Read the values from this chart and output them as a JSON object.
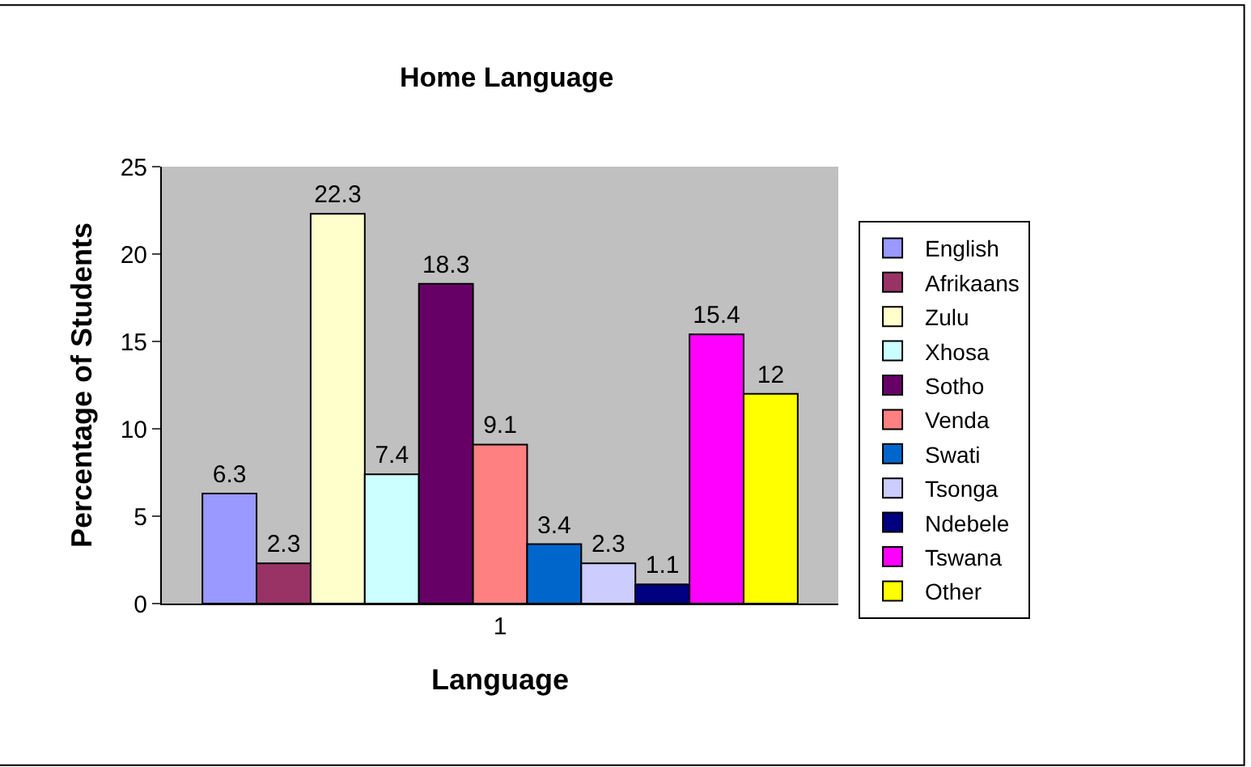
{
  "chart_data": {
    "type": "bar",
    "title": "Home Language",
    "xlabel": "Language",
    "ylabel": "Percentage of Students",
    "categories": [
      "1"
    ],
    "series": [
      {
        "name": "English",
        "color": "#9999ff",
        "values": [
          6.3
        ]
      },
      {
        "name": "Afrikaans",
        "color": "#993366",
        "values": [
          2.3
        ]
      },
      {
        "name": "Zulu",
        "color": "#ffffcc",
        "values": [
          22.3
        ]
      },
      {
        "name": "Xhosa",
        "color": "#ccffff",
        "values": [
          7.4
        ]
      },
      {
        "name": "Sotho",
        "color": "#660066",
        "values": [
          18.3
        ]
      },
      {
        "name": "Venda",
        "color": "#ff8080",
        "values": [
          9.1
        ]
      },
      {
        "name": "Swati",
        "color": "#0066cc",
        "values": [
          3.4
        ]
      },
      {
        "name": "Tsonga",
        "color": "#ccccff",
        "values": [
          2.3
        ]
      },
      {
        "name": "Ndebele",
        "color": "#000080",
        "values": [
          1.1
        ]
      },
      {
        "name": "Tswana",
        "color": "#ff00ff",
        "values": [
          15.4
        ]
      },
      {
        "name": "Other",
        "color": "#ffff00",
        "values": [
          12
        ]
      }
    ],
    "ylim": [
      0,
      25
    ],
    "yticks": [
      0,
      5,
      10,
      15,
      20,
      25
    ],
    "data_labels": true,
    "grid": false,
    "legend": "right"
  }
}
